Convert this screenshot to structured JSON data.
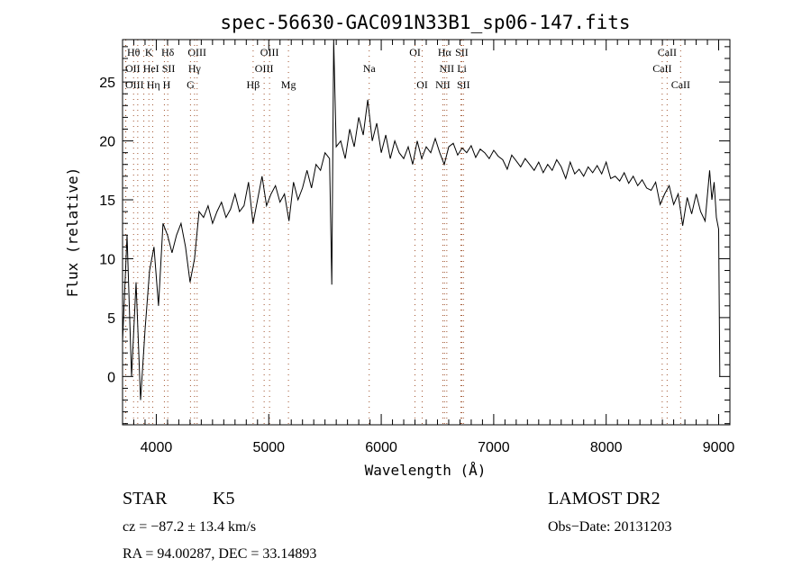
{
  "chart_data": {
    "type": "line",
    "title": "spec-56630-GAC091N33B1_sp06-147.fits",
    "xlabel": "Wavelength (Å)",
    "ylabel": "Flux (relative)",
    "xlim": [
      3700,
      9100
    ],
    "ylim": [
      -4.1,
      28.6
    ],
    "xticks": [
      4000,
      5000,
      6000,
      7000,
      8000,
      9000
    ],
    "yticks": [
      0,
      5,
      10,
      15,
      20,
      25
    ],
    "grid": false,
    "line_color": "#000000",
    "marker_color": "#a0522d",
    "series": [
      {
        "name": "spectrum",
        "x": [
          3700,
          3740,
          3780,
          3820,
          3860,
          3900,
          3940,
          3980,
          4020,
          4060,
          4100,
          4140,
          4180,
          4220,
          4260,
          4300,
          4340,
          4380,
          4420,
          4460,
          4500,
          4540,
          4580,
          4620,
          4660,
          4700,
          4740,
          4780,
          4820,
          4860,
          4900,
          4940,
          4980,
          5020,
          5060,
          5100,
          5140,
          5180,
          5220,
          5260,
          5300,
          5340,
          5380,
          5420,
          5460,
          5500,
          5540,
          5560,
          5577,
          5600,
          5640,
          5680,
          5720,
          5760,
          5800,
          5840,
          5880,
          5920,
          5960,
          6000,
          6040,
          6080,
          6120,
          6160,
          6200,
          6240,
          6280,
          6320,
          6360,
          6400,
          6440,
          6480,
          6520,
          6560,
          6600,
          6640,
          6680,
          6720,
          6760,
          6800,
          6840,
          6880,
          6920,
          6960,
          7000,
          7040,
          7080,
          7120,
          7160,
          7200,
          7240,
          7280,
          7320,
          7360,
          7400,
          7440,
          7480,
          7520,
          7560,
          7600,
          7640,
          7680,
          7720,
          7760,
          7800,
          7840,
          7880,
          7920,
          7960,
          8000,
          8040,
          8080,
          8120,
          8160,
          8200,
          8240,
          8280,
          8320,
          8360,
          8400,
          8440,
          8480,
          8520,
          8560,
          8600,
          8640,
          8680,
          8720,
          8760,
          8800,
          8840,
          8880,
          8920,
          8940,
          8960,
          8980,
          9000,
          9010
        ],
        "y": [
          3,
          12,
          0,
          8,
          -2,
          4,
          9,
          11,
          6,
          13,
          12,
          10.5,
          12,
          13,
          11,
          8,
          10,
          14,
          13.5,
          14.5,
          13,
          14,
          14.8,
          13.5,
          14.2,
          15.5,
          14,
          14.5,
          16.5,
          13,
          15,
          17,
          14.5,
          15.5,
          16.2,
          14.8,
          15.5,
          13.2,
          16.5,
          15,
          16,
          17.5,
          16,
          18,
          17.5,
          19,
          18.5,
          7.8,
          28.6,
          19.5,
          20,
          18.5,
          21,
          19.5,
          22,
          20.5,
          23.5,
          20,
          21.5,
          19,
          20.5,
          18.5,
          20,
          19,
          18.5,
          19.5,
          18,
          20,
          18.5,
          19.5,
          19,
          20.2,
          19,
          18,
          19.5,
          19.8,
          18.8,
          19.4,
          19,
          19.6,
          18.6,
          19.3,
          19,
          18.5,
          19.2,
          18.7,
          18.4,
          17.6,
          18.8,
          18.3,
          17.8,
          18.5,
          18,
          17.5,
          18.2,
          17.3,
          18,
          17.5,
          18.4,
          17.8,
          16.8,
          18.2,
          17.2,
          17.6,
          17,
          17.8,
          17.3,
          17.9,
          17.2,
          18.2,
          16.8,
          17,
          16.6,
          17.3,
          16.4,
          17,
          16.2,
          16.7,
          16,
          15.8,
          16.5,
          14.6,
          15.5,
          16.2,
          14.6,
          15.5,
          12.8,
          15.2,
          13.8,
          15.5,
          14,
          13.2,
          17.5,
          15,
          16.5,
          13.5,
          12.5,
          0
        ]
      }
    ],
    "annotations": [
      {
        "label": "Hθ",
        "wavelength": 3798
      },
      {
        "label": "K",
        "wavelength": 3934
      },
      {
        "label": "Hδ",
        "wavelength": 4102
      },
      {
        "label": "OIII",
        "wavelength": 4363
      },
      {
        "label": "OIII",
        "wavelength": 5007
      },
      {
        "label": "OI",
        "wavelength": 6300
      },
      {
        "label": "Hα",
        "wavelength": 6563
      },
      {
        "label": "SII",
        "wavelength": 6716
      },
      {
        "label": "CaII",
        "wavelength": 8542
      },
      {
        "label": "OII",
        "wavelength": 3727
      },
      {
        "label": "HeI",
        "wavelength": 3889
      },
      {
        "label": "SII",
        "wavelength": 4072
      },
      {
        "label": "Hγ",
        "wavelength": 4340
      },
      {
        "label": "OIII",
        "wavelength": 4959
      },
      {
        "label": "Na",
        "wavelength": 5893
      },
      {
        "label": "NII",
        "wavelength": 6583
      },
      {
        "label": "Li",
        "wavelength": 6708
      },
      {
        "label": "CaII",
        "wavelength": 8498
      },
      {
        "label": "OIII",
        "wavelength": 3729
      },
      {
        "label": "Hη",
        "wavelength": 3835
      },
      {
        "label": "H",
        "wavelength": 3968
      },
      {
        "label": "G",
        "wavelength": 4304
      },
      {
        "label": "Hβ",
        "wavelength": 4861
      },
      {
        "label": "Mg",
        "wavelength": 5175
      },
      {
        "label": "OI",
        "wavelength": 6364
      },
      {
        "label": "NII",
        "wavelength": 6548
      },
      {
        "label": "SII",
        "wavelength": 6731
      },
      {
        "label": "CaII",
        "wavelength": 8662
      }
    ]
  },
  "info": {
    "object_class": "STAR",
    "subclass": "K5",
    "survey": "LAMOST DR2",
    "redshift": "cz = −87.2 ± 13.4 km/s",
    "obs_date": "Obs−Date: 20131203",
    "coords": "RA =  94.00287, DEC =  33.14893"
  }
}
